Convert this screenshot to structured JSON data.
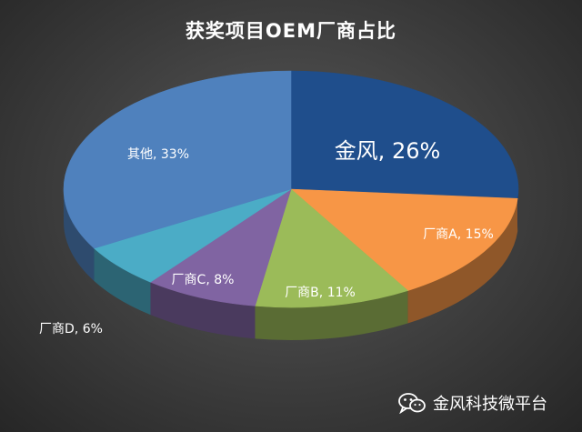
{
  "chart_data": {
    "type": "pie",
    "title": "获奖项目OEM厂商占比",
    "slices": [
      {
        "label": "金风, 26%",
        "value": 26,
        "color": "#1f4e8c"
      },
      {
        "label": "厂商A, 15%",
        "value": 15,
        "color": "#f79646"
      },
      {
        "label": "厂商B, 11%",
        "value": 11,
        "color": "#9bbb59"
      },
      {
        "label": "厂商C, 8%",
        "value": 8,
        "color": "#8064a2"
      },
      {
        "label": "厂商D, 6%",
        "value": 6,
        "color": "#4bacc6"
      },
      {
        "label": "其他, 33%",
        "value": 33,
        "color": "#4f81bd"
      }
    ]
  },
  "watermark": {
    "text": "金风科技微平台",
    "icon": "wechat-icon"
  }
}
